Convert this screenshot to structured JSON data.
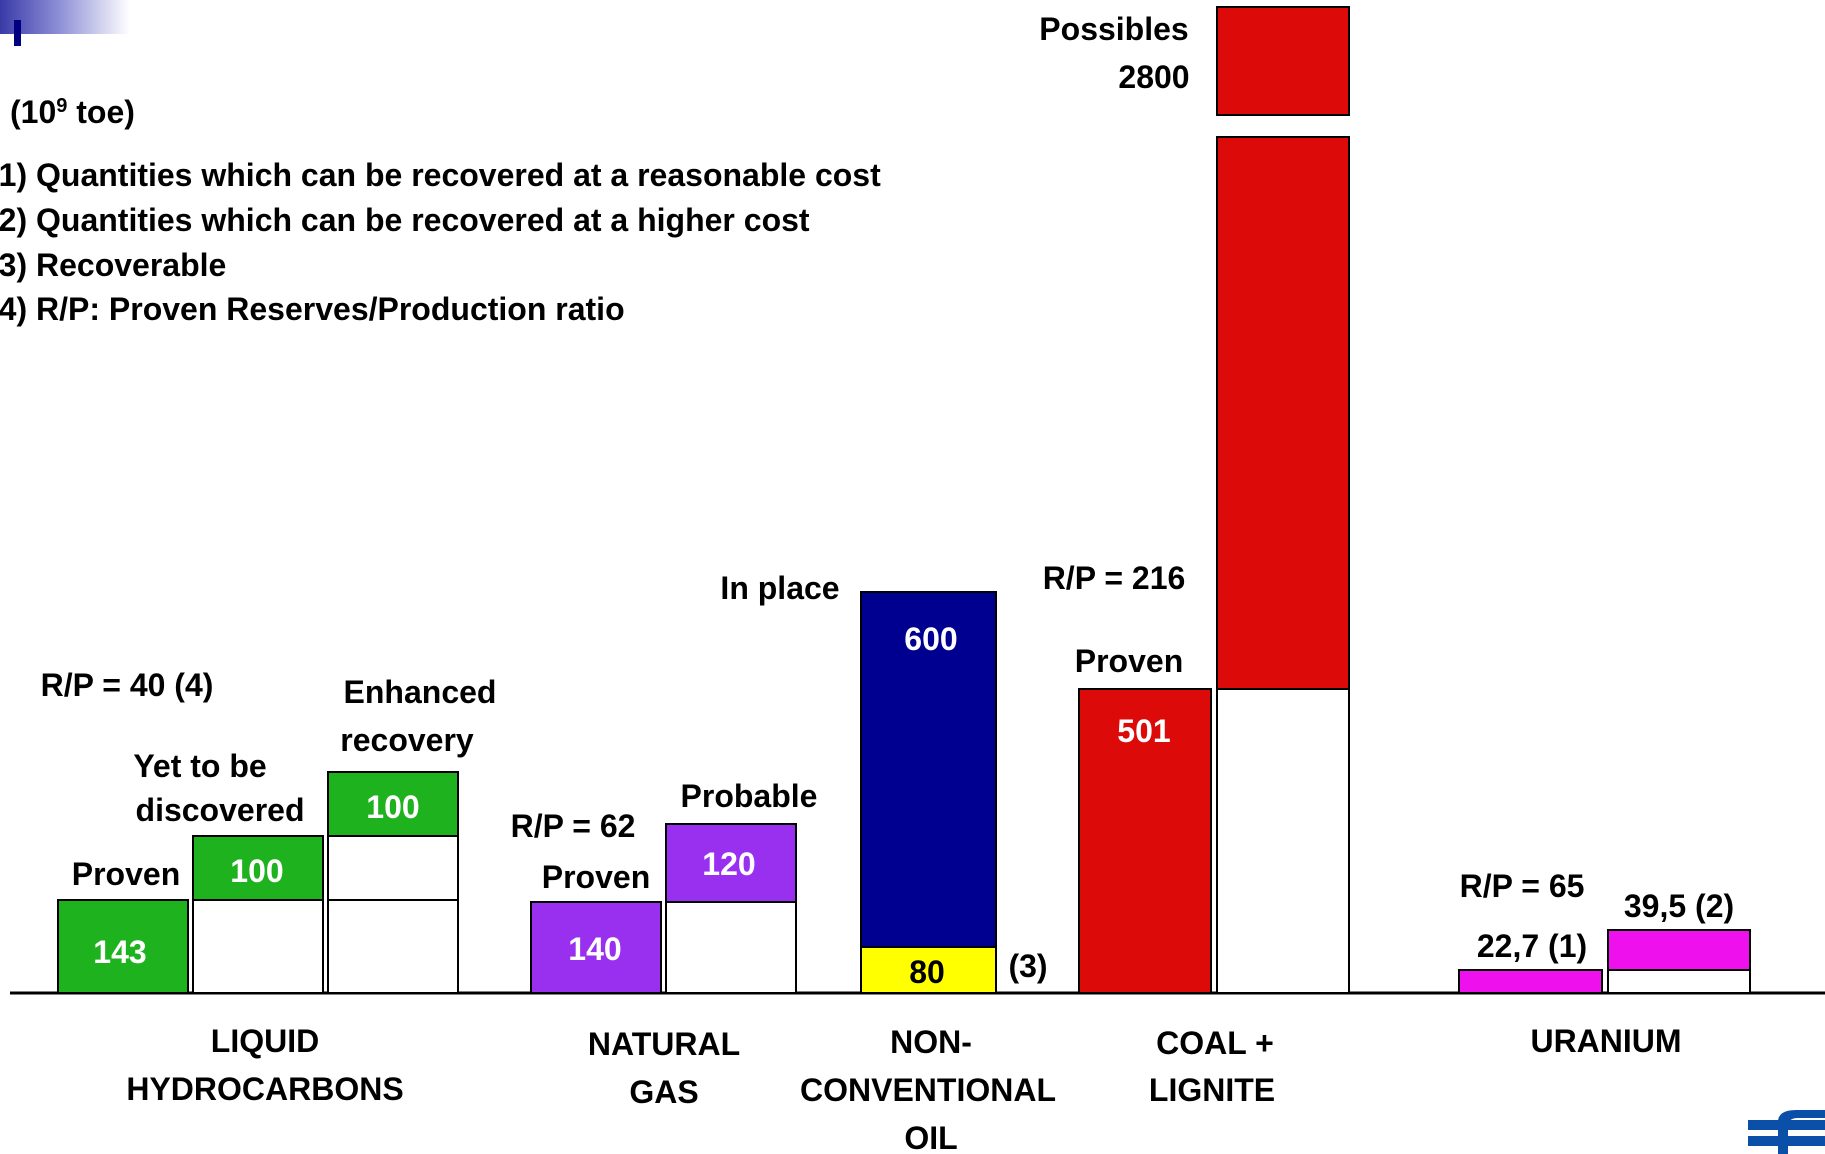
{
  "chart_data": {
    "type": "bar",
    "unit": "(10",
    "unit_sup": "9",
    "unit_rest": " toe)",
    "notes": [
      "(1) Quantities which can be recovered at a reasonable cost",
      "(2) Quantities which can be recovered at a higher cost",
      "(3) Recoverable",
      "(4) R/P: Proven Reserves/Production ratio"
    ],
    "categories": [
      {
        "lines": [
          "LIQUID",
          "HYDROCARBONS"
        ],
        "rp": "R/P = 40 (4)",
        "bars": [
          {
            "label": [
              "Proven"
            ],
            "value": 143,
            "value_text": "143",
            "color": "#1fb21f"
          },
          {
            "label": [
              "Yet to be",
              "discovered"
            ],
            "value": 100,
            "value_text": "100",
            "color": "#1fb21f"
          },
          {
            "label": [
              "Enhanced",
              "recovery"
            ],
            "value": 100,
            "value_text": "100",
            "color": "#1fb21f"
          }
        ]
      },
      {
        "lines": [
          "NATURAL",
          "GAS"
        ],
        "rp": "R/P = 62",
        "bars": [
          {
            "label": [
              "Proven"
            ],
            "value": 140,
            "value_text": "140",
            "color": "#9a30ef"
          },
          {
            "label": [
              "Probable"
            ],
            "value": 120,
            "value_text": "120",
            "color": "#9a30ef"
          }
        ]
      },
      {
        "lines": [
          "NON-",
          "CONVENTIONAL",
          "OIL"
        ],
        "bars": [
          {
            "label": [
              "In place"
            ],
            "value": 600,
            "value_text": "600",
            "color": "#000090"
          },
          {
            "label": [
              "(3)"
            ],
            "value": 80,
            "value_text": "80",
            "color": "#ffff00"
          }
        ]
      },
      {
        "lines": [
          "COAL +",
          "LIGNITE"
        ],
        "rp": "R/P = 216",
        "bars": [
          {
            "label": [
              "Proven"
            ],
            "value": 501,
            "value_text": "501",
            "color": "#dd0a0a"
          },
          {
            "label": [
              "Possibles",
              "2800"
            ],
            "value": 2800,
            "value_text": "2800",
            "color": "#dd0a0a"
          }
        ]
      },
      {
        "lines": [
          "URANIUM"
        ],
        "rp": "R/P = 65",
        "bars": [
          {
            "label": [
              "22,7 (1)"
            ],
            "value": 22.7,
            "value_text": "22,7 (1)",
            "color": "#ee11ee"
          },
          {
            "label": [
              "39,5 (2)"
            ],
            "value": 39.5,
            "value_text": "39,5 (2)",
            "color": "#ee11ee"
          }
        ]
      }
    ]
  }
}
